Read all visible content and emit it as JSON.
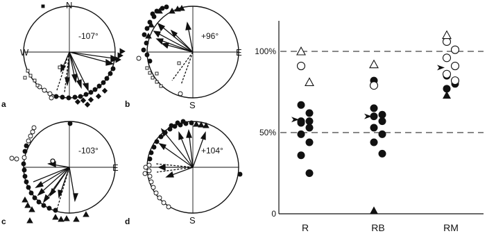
{
  "panels": [
    {
      "letter": "a",
      "angle_label": "-107°",
      "compass": [
        "N",
        "W"
      ]
    },
    {
      "letter": "b",
      "angle_label": "+96°",
      "compass": [
        "E",
        "S"
      ]
    },
    {
      "letter": "c",
      "angle_label": "-103°",
      "compass": [
        "E"
      ]
    },
    {
      "letter": "d",
      "angle_label": "+104°",
      "compass": [
        "S"
      ]
    }
  ],
  "chart_data": {
    "type": "scatter",
    "categories": [
      "R",
      "RB",
      "RM"
    ],
    "y_tick_labels": [
      "0",
      "50%",
      "100%"
    ],
    "ylim": [
      0,
      125
    ],
    "reference_lines": [
      50,
      100
    ],
    "grid": false,
    "series": [
      {
        "marker": "filled-circle",
        "x": [
          "R",
          "R",
          "R",
          "R",
          "R",
          "R",
          "R",
          "R",
          "R",
          "R",
          "RB",
          "RB",
          "RB",
          "RB",
          "RB",
          "RB",
          "RB",
          "RB",
          "RB",
          "RM",
          "RM",
          "RM"
        ],
        "y": [
          67,
          62,
          57,
          57,
          56,
          53,
          49,
          44,
          36,
          25,
          65,
          61,
          60,
          57,
          53,
          49,
          44,
          37,
          82,
          85,
          80,
          77
        ]
      },
      {
        "marker": "open-circle",
        "x": [
          "R",
          "RB",
          "RM",
          "RM",
          "RM",
          "RM",
          "RM",
          "RM"
        ],
        "y": [
          91,
          79,
          106,
          101,
          96,
          91,
          86,
          82
        ]
      },
      {
        "marker": "open-triangle",
        "x": [
          "R",
          "R",
          "RB",
          "RM"
        ],
        "y": [
          100,
          81,
          92,
          110
        ]
      },
      {
        "marker": "filled-triangle",
        "x": [
          "RB",
          "RM"
        ],
        "y": [
          2,
          73
        ]
      },
      {
        "marker": "median-arrowhead",
        "x": [
          "R",
          "RB",
          "RM"
        ],
        "y": [
          58,
          60,
          90
        ]
      }
    ]
  }
}
